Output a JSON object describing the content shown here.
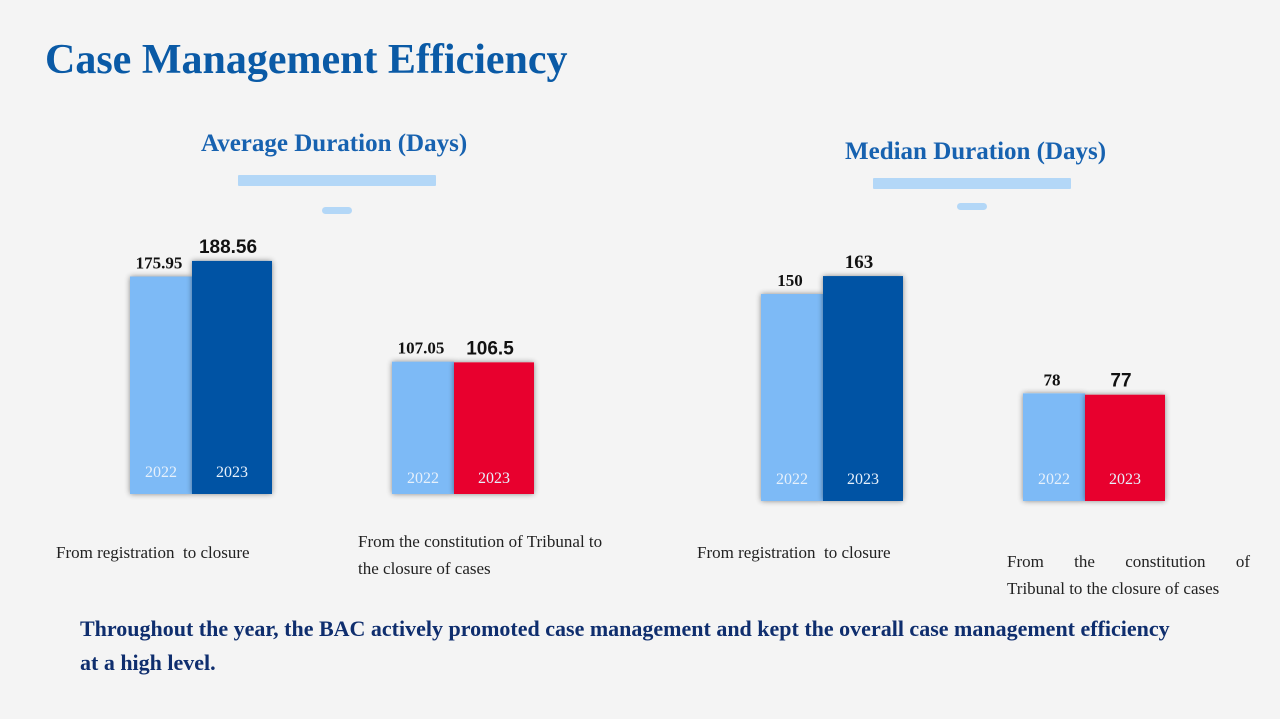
{
  "title": "Case Management Efficiency",
  "summary": "Throughout the year, the BAC actively promoted case management and kept the overall case management efficiency at a high level.",
  "colors": {
    "title": "#0a5aa6",
    "bar_2022": "#7dbaf6",
    "bar_2023_blue": "#0153a4",
    "bar_2023_red": "#e8002f",
    "decoration": "#b3d7f7"
  },
  "chart_data": [
    {
      "type": "bar",
      "title": "Average Duration (Days)",
      "series_labels": [
        "2022",
        "2023"
      ],
      "groups": [
        {
          "category": "From registration  to closure",
          "values": [
            175.95,
            188.56
          ],
          "labels": [
            "175.95",
            "188.56"
          ],
          "color_2023": "#0153a4"
        },
        {
          "category": "From the constitution of Tribunal to the closure of cases",
          "values": [
            107.05,
            106.5
          ],
          "labels": [
            "107.05",
            "106.5"
          ],
          "color_2023": "#e8002f"
        }
      ]
    },
    {
      "type": "bar",
      "title": "Median Duration (Days)",
      "series_labels": [
        "2022",
        "2023"
      ],
      "groups": [
        {
          "category": "From registration  to closure",
          "values": [
            150,
            163
          ],
          "labels": [
            "150",
            "163"
          ],
          "color_2023": "#0153a4"
        },
        {
          "category": "From the constitution of Tribunal to the closure of cases",
          "values": [
            78,
            77
          ],
          "labels": [
            "78",
            "77"
          ],
          "color_2023": "#e8002f"
        }
      ]
    }
  ]
}
